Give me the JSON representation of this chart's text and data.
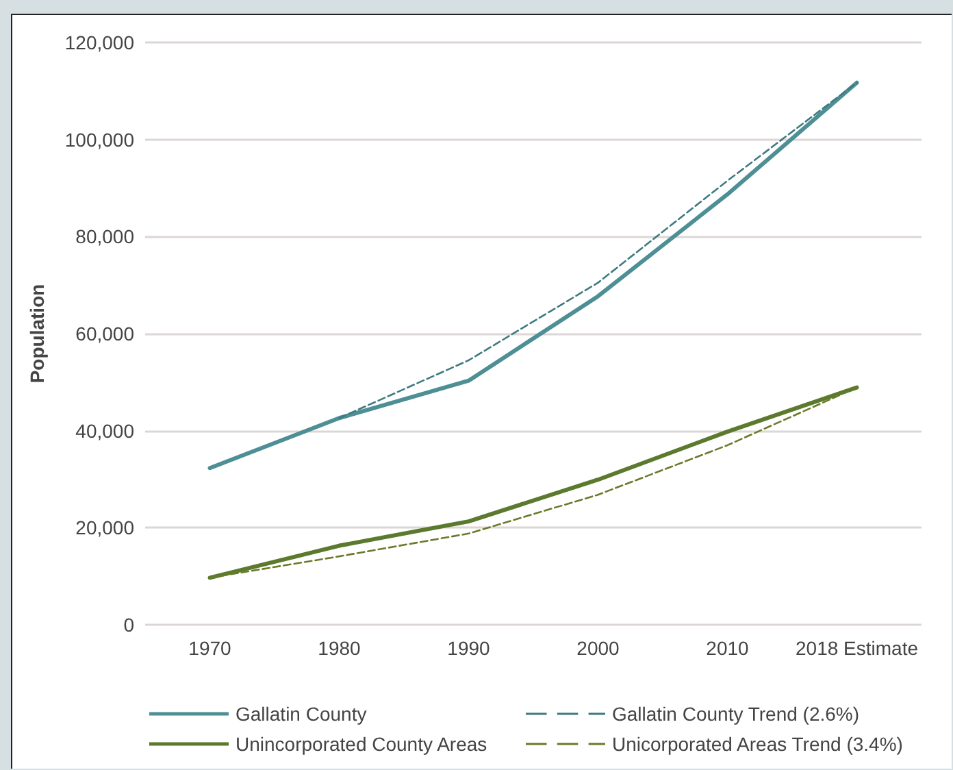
{
  "chart_data": {
    "type": "line",
    "ylabel": "Population",
    "categories": [
      "1970",
      "1980",
      "1990",
      "2000",
      "2010",
      "2018 Estimate"
    ],
    "series": [
      {
        "name": "Gallatin County",
        "color": "#4e8f95",
        "line_style": "solid",
        "values": [
          32300,
          42600,
          50300,
          67700,
          88700,
          111700
        ]
      },
      {
        "name": "Unincorporated County Areas",
        "color": "#5b7a2e",
        "line_style": "solid",
        "values": [
          9700,
          16300,
          21300,
          29900,
          39800,
          48900
        ]
      },
      {
        "name": "Gallatin County Trend (2.6%)",
        "color": "#3f7a80",
        "line_style": "dashed",
        "values": [
          null,
          42600,
          54500,
          70500,
          91500,
          111700
        ]
      },
      {
        "name": "Unicorporated Areas Trend (3.4%)",
        "color": "#6b7a2a",
        "line_style": "dashed",
        "values": [
          9700,
          14100,
          18800,
          26800,
          37000,
          48900
        ]
      }
    ],
    "ylim": [
      0,
      120000
    ],
    "yticks": [
      0,
      {
        "value": 20000,
        "label": "20,000"
      },
      {
        "value": 40000,
        "label": "40,000"
      },
      {
        "value": 60000,
        "label": "60,000"
      },
      {
        "value": 80000,
        "label": "80,000"
      },
      {
        "value": 100000,
        "label": "100,000"
      },
      {
        "value": 120000,
        "label": "120,000"
      }
    ],
    "grid": "y",
    "legend": "bottom",
    "marker": "none"
  }
}
